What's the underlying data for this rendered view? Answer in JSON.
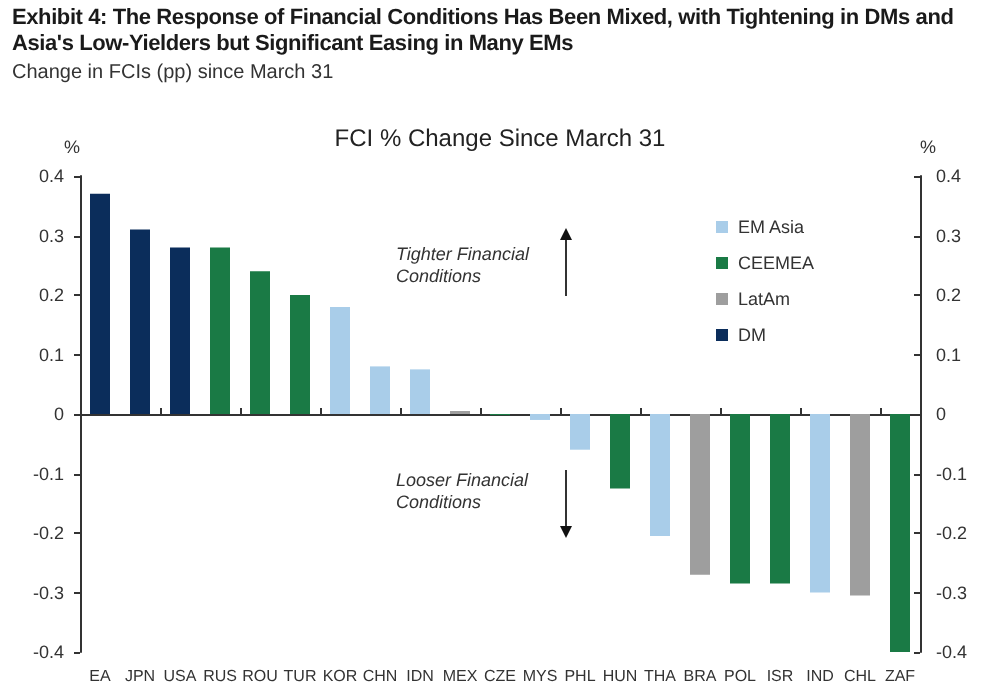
{
  "chart_data": {
    "type": "bar",
    "title": "Exhibit 4: The Response of Financial Conditions Has Been Mixed, with Tightening in DMs and Asia's Low-Yielders but Significant Easing in Many EMs",
    "subtitle": "Change in FCIs (pp) since March 31",
    "annotations": [
      "FCI % Change Since March 31",
      "Tighter Financial Conditions",
      "Looser Financial Conditions"
    ],
    "ylabel": "%",
    "y2label": "%",
    "categories": [
      "EA",
      "JPN",
      "USA",
      "RUS",
      "ROU",
      "TUR",
      "KOR",
      "CHN",
      "IDN",
      "MEX",
      "CZE",
      "MYS",
      "PHL",
      "HUN",
      "THA",
      "BRA",
      "POL",
      "ISR",
      "IND",
      "CHL",
      "ZAF"
    ],
    "series": [
      {
        "name": "EM Asia",
        "color": "#a9cde9",
        "values": [
          null,
          null,
          null,
          null,
          null,
          null,
          0.18,
          0.08,
          0.075,
          null,
          null,
          -0.01,
          -0.06,
          null,
          -0.205,
          null,
          null,
          null,
          -0.3,
          null,
          null
        ]
      },
      {
        "name": "CEEMEA",
        "color": "#1a7a45",
        "values": [
          null,
          null,
          null,
          0.28,
          0.24,
          0.2,
          null,
          null,
          null,
          null,
          -0.002,
          null,
          null,
          -0.125,
          null,
          null,
          -0.285,
          -0.285,
          null,
          null,
          -0.4
        ]
      },
      {
        "name": "LatAm",
        "color": "#9e9e9e",
        "values": [
          null,
          null,
          null,
          null,
          null,
          null,
          null,
          null,
          null,
          0.005,
          null,
          null,
          null,
          null,
          null,
          -0.27,
          null,
          null,
          null,
          -0.305,
          null
        ]
      },
      {
        "name": "DM",
        "color": "#0b2d5b",
        "values": [
          0.37,
          0.31,
          0.28,
          null,
          null,
          null,
          null,
          null,
          null,
          null,
          null,
          null,
          null,
          null,
          null,
          null,
          null,
          null,
          null,
          null,
          null
        ]
      }
    ],
    "ylim": [
      -0.4,
      0.4
    ],
    "yticks": [
      -0.4,
      -0.3,
      -0.2,
      -0.1,
      0,
      0.1,
      0.2,
      0.3,
      0.4
    ],
    "y2lim": [
      -0.4,
      0.4
    ],
    "y2ticks": [
      -0.4,
      -0.3,
      -0.2,
      -0.1,
      0,
      0.1,
      0.2,
      0.3,
      0.4
    ],
    "legend": "top right"
  }
}
